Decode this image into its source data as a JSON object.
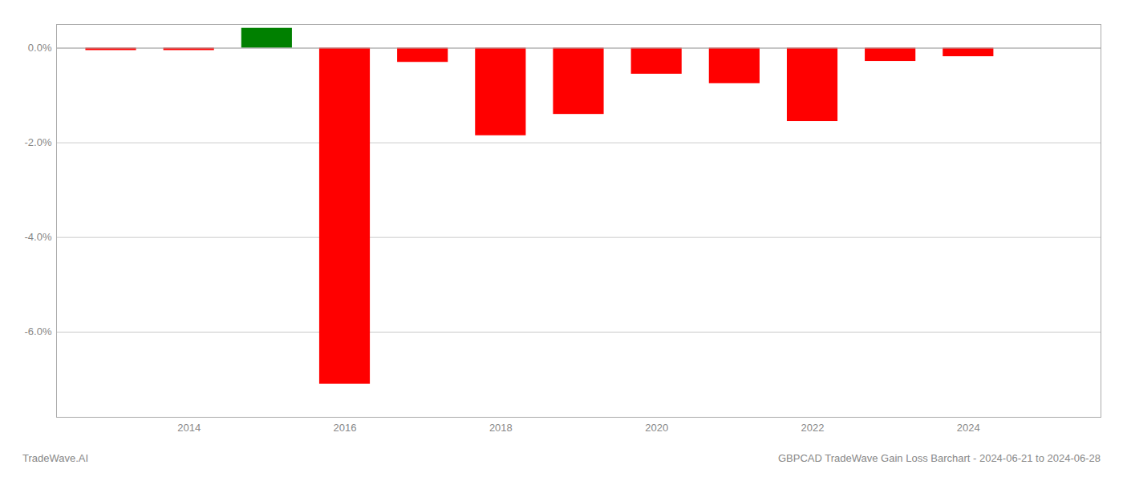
{
  "chart_data": {
    "type": "bar",
    "x": [
      2013,
      2014,
      2015,
      2016,
      2017,
      2018,
      2019,
      2020,
      2021,
      2022,
      2023,
      2024
    ],
    "values": [
      -0.05,
      -0.05,
      0.42,
      -7.1,
      -0.3,
      -1.85,
      -1.4,
      -0.55,
      -0.75,
      -1.55,
      -0.28,
      -0.18
    ],
    "colors": [
      "#ff0000",
      "#ff0000",
      "#008000",
      "#ff0000",
      "#ff0000",
      "#ff0000",
      "#ff0000",
      "#ff0000",
      "#ff0000",
      "#ff0000",
      "#ff0000",
      "#ff0000"
    ],
    "xlim": [
      2012.3,
      2025.7
    ],
    "xticks": [
      2014,
      2016,
      2018,
      2020,
      2022,
      2024
    ],
    "ylim": [
      -7.8,
      0.5
    ],
    "yticks": [
      {
        "value": -6,
        "label": "-6.0%"
      },
      {
        "value": -4,
        "label": "-4.0%"
      },
      {
        "value": -2,
        "label": "-2.0%"
      },
      {
        "value": 0,
        "label": "0.0%"
      }
    ],
    "grid": true,
    "annotations": [
      "TradeWave.AI",
      "GBPCAD TradeWave Gain Loss Barchart - 2024-06-21 to 2024-06-28"
    ]
  }
}
